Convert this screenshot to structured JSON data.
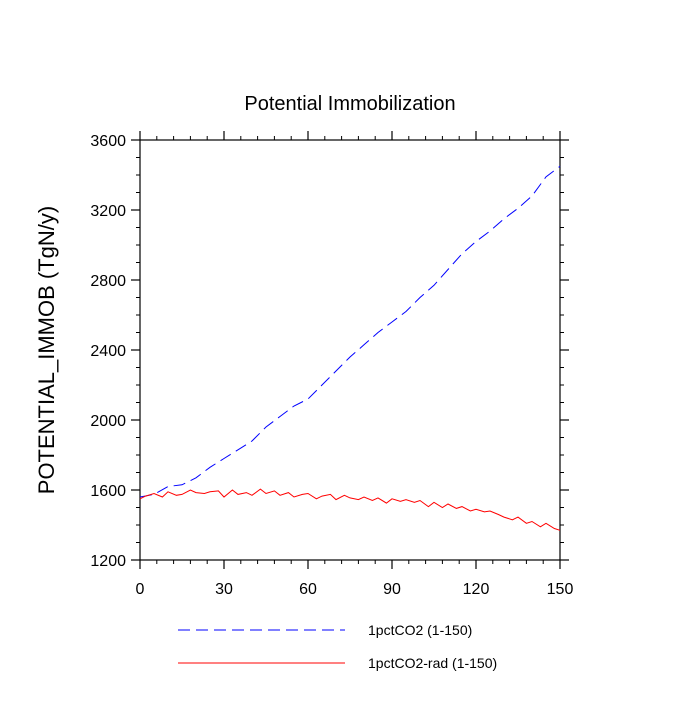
{
  "chart_data": {
    "type": "line",
    "title": "Potential Immobilization",
    "xlabel": "",
    "ylabel": "POTENTIAL_IMMOB  (TgN/y)",
    "xlim": [
      0,
      150
    ],
    "ylim": [
      1200,
      3600
    ],
    "x_ticks": [
      0,
      30,
      60,
      90,
      120,
      150
    ],
    "y_ticks": [
      1200,
      1600,
      2000,
      2400,
      2800,
      3200,
      3600
    ],
    "grid": false,
    "legend_position": "bottom",
    "series": [
      {
        "name": "1pctCO2 (1-150)",
        "color": "#0000ff",
        "dash": "dashed",
        "x": [
          0,
          5,
          10,
          15,
          20,
          25,
          30,
          35,
          40,
          45,
          50,
          55,
          60,
          65,
          70,
          75,
          80,
          85,
          90,
          95,
          100,
          105,
          110,
          115,
          120,
          125,
          130,
          135,
          140,
          145,
          150
        ],
        "y": [
          1560,
          1575,
          1620,
          1630,
          1670,
          1730,
          1780,
          1830,
          1880,
          1960,
          2020,
          2080,
          2120,
          2200,
          2280,
          2360,
          2430,
          2500,
          2560,
          2620,
          2700,
          2770,
          2860,
          2950,
          3020,
          3080,
          3150,
          3210,
          3280,
          3390,
          3450
        ]
      },
      {
        "name": "1pctCO2-rad (1-150)",
        "color": "#ff0000",
        "dash": "solid",
        "x": [
          0,
          2,
          5,
          8,
          10,
          13,
          15,
          18,
          20,
          23,
          25,
          28,
          30,
          33,
          35,
          38,
          40,
          43,
          45,
          48,
          50,
          53,
          55,
          58,
          60,
          63,
          65,
          68,
          70,
          73,
          75,
          78,
          80,
          83,
          85,
          88,
          90,
          93,
          95,
          98,
          100,
          103,
          105,
          108,
          110,
          113,
          115,
          118,
          120,
          123,
          125,
          128,
          130,
          133,
          135,
          138,
          140,
          143,
          145,
          148,
          150
        ],
        "y": [
          1550,
          1565,
          1580,
          1560,
          1590,
          1570,
          1575,
          1600,
          1585,
          1580,
          1590,
          1595,
          1560,
          1600,
          1575,
          1585,
          1570,
          1605,
          1580,
          1595,
          1570,
          1585,
          1560,
          1575,
          1580,
          1550,
          1565,
          1575,
          1545,
          1570,
          1555,
          1545,
          1560,
          1540,
          1555,
          1525,
          1550,
          1535,
          1545,
          1530,
          1540,
          1505,
          1530,
          1500,
          1520,
          1495,
          1505,
          1480,
          1490,
          1475,
          1480,
          1460,
          1445,
          1430,
          1445,
          1410,
          1420,
          1390,
          1410,
          1380,
          1370
        ]
      }
    ]
  }
}
